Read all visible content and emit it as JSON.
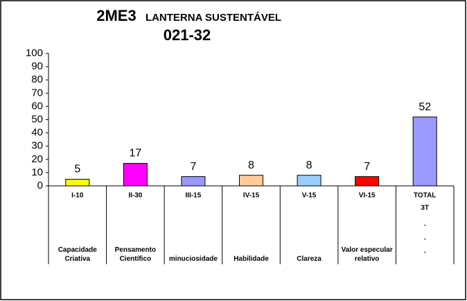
{
  "chart_data": {
    "type": "bar",
    "title": "2ME3",
    "subtitle": "LANTERNA SUSTENTÁVEL",
    "code": "021-32",
    "categories": [
      "I-10",
      "II-30",
      "III-15",
      "IV-15",
      "V-15",
      "VI-15",
      "TOTAL"
    ],
    "descriptions": [
      "Capacidade Criativa",
      "Pensamento Científico",
      "minuciosidade",
      "Habilidade",
      "Clareza",
      "Valor especular relativo",
      null
    ],
    "total_notes": [
      "3T",
      ".",
      ".",
      "."
    ],
    "values": [
      5,
      17,
      7,
      8,
      8,
      7,
      52
    ],
    "colors": [
      "#ffff00",
      "#ff00ff",
      "#9999ff",
      "#ffcc99",
      "#99ccff",
      "#ff0000",
      "#9999ff"
    ],
    "ylim": [
      0,
      100
    ],
    "yticks": [
      0,
      10,
      20,
      30,
      40,
      50,
      60,
      70,
      80,
      90,
      100
    ]
  }
}
